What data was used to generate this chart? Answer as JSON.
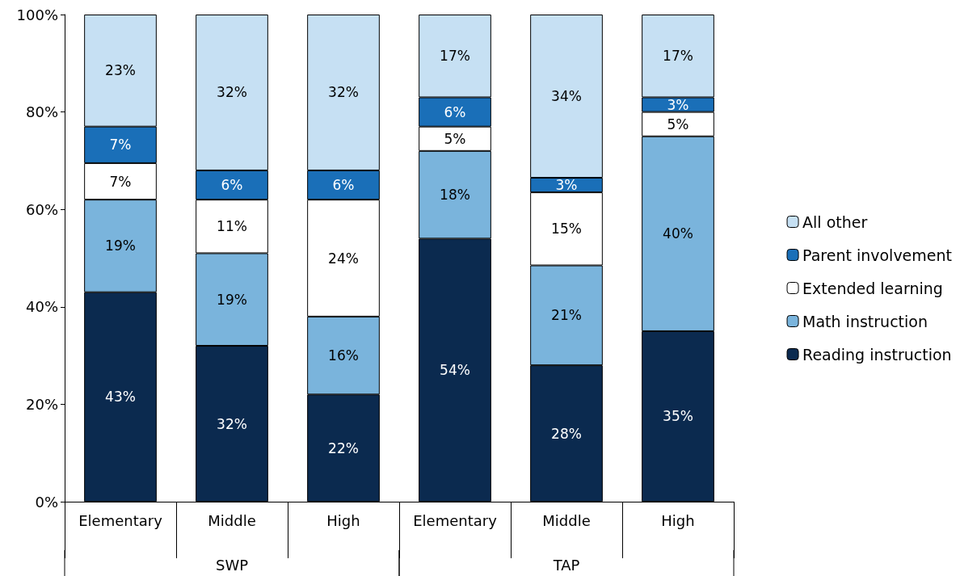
{
  "chart_data": {
    "type": "bar",
    "stacked": true,
    "legend": "right",
    "grid": false,
    "categories": [
      "Elementary",
      "Middle",
      "High",
      "Elementary",
      "Middle",
      "High"
    ],
    "annotations": [
      "SWP",
      "TAP"
    ],
    "ylim": [
      0,
      100
    ],
    "yticks": [
      {
        "value": 0,
        "label": "0%"
      },
      {
        "value": 20,
        "label": "20%"
      },
      {
        "value": 40,
        "label": "40%"
      },
      {
        "value": 60,
        "label": "60%"
      },
      {
        "value": 80,
        "label": "80%"
      },
      {
        "value": 100,
        "label": "100%"
      }
    ],
    "series": [
      {
        "name": "Reading instruction",
        "color": "#0b2a4f",
        "values": [
          43,
          32,
          22,
          54,
          28,
          35
        ],
        "value_labels": [
          "43%",
          "32%",
          "22%",
          "54%",
          "28%",
          "35%"
        ]
      },
      {
        "name": "Math instruction",
        "color": "#7ab4dc",
        "values": [
          19,
          19,
          16,
          18,
          20.5,
          40
        ],
        "value_labels": [
          "19%",
          "19%",
          "16%",
          "18%",
          "21%",
          "40%"
        ]
      },
      {
        "name": "Extended learning",
        "color": "#ffffff",
        "values": [
          7.5,
          11,
          24,
          5,
          15,
          5
        ],
        "value_labels": [
          "7%",
          "11%",
          "24%",
          "5%",
          "15%",
          "5%"
        ]
      },
      {
        "name": "Parent involvement",
        "color": "#1a6fb8",
        "values": [
          7.5,
          6,
          6,
          6,
          3,
          3
        ],
        "value_labels": [
          "7%",
          "6%",
          "6%",
          "6%",
          "3%",
          "3%"
        ]
      },
      {
        "name": "All other",
        "color": "#c6e0f3",
        "values": [
          23,
          32,
          32,
          17,
          33.5,
          17
        ],
        "value_labels": [
          "23%",
          "32%",
          "32%",
          "17%",
          "34%",
          "17%"
        ]
      }
    ]
  }
}
